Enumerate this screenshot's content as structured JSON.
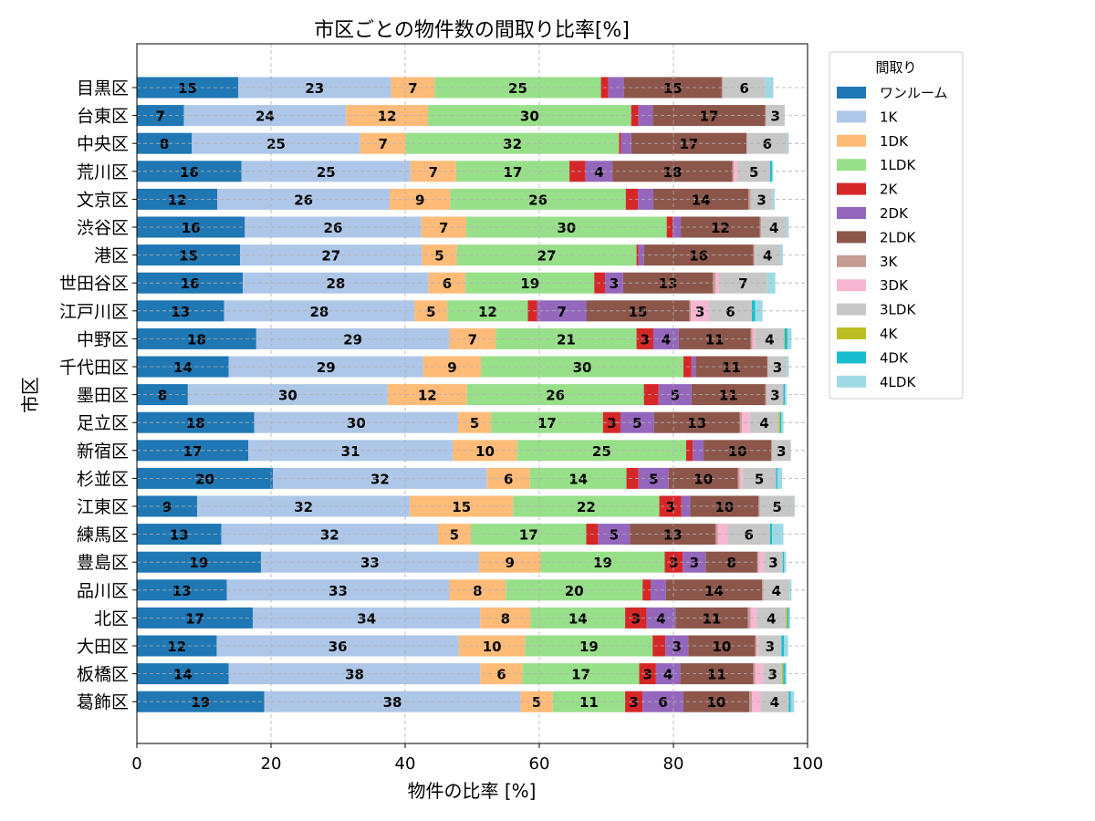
{
  "chart_data": {
    "type": "bar",
    "orientation": "horizontal",
    "stacked": true,
    "title": "市区ごとの物件数の間取り比率[%]",
    "xlabel": "物件の比率 [%]",
    "ylabel": "市区",
    "xlim": [
      0,
      100
    ],
    "xticks": [
      "0",
      "20",
      "40",
      "60",
      "80",
      "100"
    ],
    "grid": true,
    "legend_title": "間取り",
    "legend_position": "outside-top-right",
    "categories": [
      "目黒区",
      "台東区",
      "中央区",
      "荒川区",
      "文京区",
      "渋谷区",
      "港区",
      "世田谷区",
      "江戸川区",
      "中野区",
      "千代田区",
      "墨田区",
      "足立区",
      "新宿区",
      "杉並区",
      "江東区",
      "練馬区",
      "豊島区",
      "品川区",
      "北区",
      "大田区",
      "板橋区",
      "葛飾区"
    ],
    "series": [
      {
        "name": "ワンルーム",
        "color": "#1f77b4",
        "values": [
          15.1,
          7.0,
          8.2,
          15.6,
          12.0,
          16.1,
          15.4,
          15.8,
          13.0,
          17.8,
          13.7,
          7.6,
          17.5,
          16.6,
          20.3,
          9.0,
          12.6,
          18.5,
          13.4,
          17.3,
          11.9,
          13.7,
          19.0
        ]
      },
      {
        "name": "1K",
        "color": "#aec7e8",
        "values": [
          22.8,
          24.2,
          25.1,
          25.2,
          25.7,
          26.3,
          27.1,
          27.7,
          28.4,
          28.8,
          29.0,
          29.8,
          30.4,
          30.5,
          31.9,
          31.7,
          32.3,
          32.5,
          33.2,
          33.9,
          36.1,
          37.5,
          38.2
        ]
      },
      {
        "name": "1DK",
        "color": "#ffbb78",
        "values": [
          6.5,
          12.2,
          6.8,
          6.8,
          9.0,
          6.7,
          5.2,
          5.5,
          4.9,
          6.9,
          8.6,
          11.8,
          4.9,
          9.6,
          6.4,
          15.4,
          4.9,
          9.2,
          8.4,
          7.5,
          9.9,
          6.3,
          4.8
        ]
      },
      {
        "name": "1LDK",
        "color": "#98df8a",
        "values": [
          24.8,
          30.3,
          31.8,
          16.9,
          26.2,
          29.9,
          26.8,
          19.2,
          12.0,
          21.0,
          30.2,
          26.4,
          16.7,
          25.2,
          14.4,
          21.8,
          17.2,
          18.5,
          20.4,
          14.1,
          19.0,
          17.4,
          10.8
        ]
      },
      {
        "name": "2K",
        "color": "#d62728",
        "values": [
          1.1,
          1.1,
          0.3,
          2.4,
          1.8,
          0.9,
          0.3,
          1.6,
          1.4,
          2.5,
          1.2,
          2.2,
          2.6,
          1.0,
          1.8,
          3.3,
          1.8,
          2.7,
          1.2,
          3.2,
          1.9,
          2.5,
          2.6
        ]
      },
      {
        "name": "2DK",
        "color": "#9467bd",
        "values": [
          2.3,
          2.1,
          1.5,
          4.0,
          2.3,
          1.2,
          0.8,
          2.7,
          7.3,
          3.8,
          0.6,
          4.9,
          5.0,
          1.6,
          4.5,
          1.3,
          4.7,
          3.4,
          2.3,
          4.3,
          3.4,
          3.6,
          6.1
        ]
      },
      {
        "name": "2LDK",
        "color": "#8c564b",
        "values": [
          14.6,
          16.8,
          17.2,
          17.9,
          14.2,
          11.8,
          16.3,
          13.4,
          15.4,
          10.7,
          10.7,
          11.0,
          12.8,
          10.1,
          10.3,
          10.2,
          12.8,
          7.7,
          14.3,
          10.8,
          10.0,
          10.9,
          9.8
        ]
      },
      {
        "name": "3K",
        "color": "#c49c94",
        "values": [
          0.2,
          0.1,
          0.1,
          0.2,
          0.3,
          0.2,
          0.2,
          0.4,
          0.2,
          0.3,
          0.1,
          0.2,
          0.3,
          0.1,
          0.3,
          0.2,
          0.3,
          0.2,
          0.2,
          0.4,
          0.2,
          0.3,
          0.4
        ]
      },
      {
        "name": "3DK",
        "color": "#f7b6d2",
        "values": [
          0.0,
          0.0,
          0.0,
          0.6,
          0.0,
          0.0,
          0.0,
          0.5,
          2.7,
          0.4,
          0.0,
          0.0,
          1.2,
          0.0,
          0.4,
          0.0,
          1.5,
          0.8,
          0.0,
          0.9,
          0.3,
          1.2,
          1.3
        ]
      },
      {
        "name": "3LDK",
        "color": "#c7c7c7",
        "values": [
          6.3,
          2.8,
          6.0,
          4.8,
          3.3,
          3.8,
          3.9,
          7.2,
          6.4,
          4.3,
          2.8,
          2.5,
          4.3,
          2.8,
          5.0,
          5.1,
          6.3,
          2.8,
          3.9,
          4.4,
          3.4,
          2.8,
          4.2
        ]
      },
      {
        "name": "4K",
        "color": "#bcbd22",
        "values": [
          0.0,
          0.0,
          0.0,
          0.0,
          0.0,
          0.0,
          0.0,
          0.0,
          0.0,
          0.1,
          0.0,
          0.0,
          0.2,
          0.0,
          0.0,
          0.0,
          0.0,
          0.0,
          0.0,
          0.2,
          0.0,
          0.2,
          0.0
        ]
      },
      {
        "name": "4DK",
        "color": "#17becf",
        "values": [
          0.0,
          0.0,
          0.0,
          0.3,
          0.0,
          0.0,
          0.0,
          0.0,
          0.5,
          0.4,
          0.0,
          0.2,
          0.2,
          0.0,
          0.2,
          0.0,
          0.3,
          0.2,
          0.0,
          0.2,
          0.4,
          0.3,
          0.3
        ]
      },
      {
        "name": "4LDK",
        "color": "#9edae5",
        "values": [
          1.2,
          0.0,
          0.2,
          0.2,
          0.3,
          0.3,
          0.3,
          1.2,
          1.1,
          0.6,
          0.3,
          0.3,
          0.3,
          0.0,
          0.7,
          0.1,
          1.7,
          0.3,
          0.3,
          0.2,
          0.6,
          0.2,
          0.5
        ]
      }
    ]
  }
}
